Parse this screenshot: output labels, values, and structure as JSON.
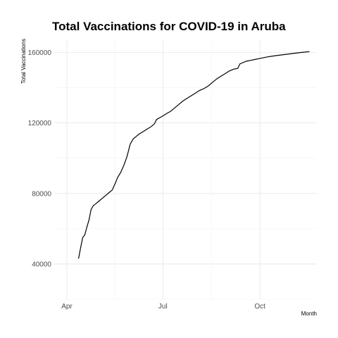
{
  "chart_data": {
    "type": "line",
    "title": "Total Vaccinations for COVID-19 in Aruba",
    "xlabel": "Month",
    "ylabel": "Total Vaccinations",
    "x_ticks": [
      {
        "label": "Apr",
        "day": 0
      },
      {
        "label": "Jul",
        "day": 91
      },
      {
        "label": "Oct",
        "day": 183
      }
    ],
    "x_minor_days": [
      45.5,
      137
    ],
    "xlim_days": [
      -12,
      237
    ],
    "ylim": [
      20000,
      167000
    ],
    "y_ticks": [
      40000,
      80000,
      120000,
      160000
    ],
    "y_tick_labels": [
      "40000",
      "80000",
      "120000",
      "160000"
    ],
    "series": [
      {
        "name": "Total Vaccinations",
        "segments": [
          {
            "x": [
              11,
              13,
              15,
              17,
              19,
              21,
              23,
              25,
              27
            ],
            "y": [
              43000,
              49000,
              55000,
              56500,
              61000,
              65000,
              71000,
              73000,
              74000
            ]
          },
          {
            "x": [
              27,
              30,
              33,
              36
            ],
            "y": [
              74000,
              75500,
              77000,
              78500
            ]
          },
          {
            "x": [
              36,
              40,
              43,
              46,
              48
            ],
            "y": [
              78500,
              80500,
              82000,
              86000,
              89000
            ]
          },
          {
            "x": [
              48,
              51,
              54,
              57,
              60
            ],
            "y": [
              89000,
              92000,
              96000,
              101000,
              108000
            ]
          },
          {
            "x": [
              60,
              63,
              66,
              68,
              72
            ],
            "y": [
              108000,
              111000,
              112500,
              113500,
              115000
            ]
          },
          {
            "x": [
              72,
              76,
              80,
              83
            ],
            "y": [
              115000,
              116500,
              118000,
              119500
            ]
          },
          {
            "x": [
              83,
              85,
              88,
              91,
              95,
              98
            ],
            "y": [
              119500,
              122000,
              123000,
              124000,
              125500,
              126500
            ]
          },
          {
            "x": [
              98,
              102,
              106,
              110,
              114,
              118,
              122,
              126,
              130
            ],
            "y": [
              126500,
              128500,
              130500,
              132500,
              134000,
              135500,
              137000,
              138500,
              139500
            ]
          },
          {
            "x": [
              130,
              134,
              138,
              142,
              146,
              150,
              154,
              158,
              162
            ],
            "y": [
              139500,
              141000,
              143000,
              145000,
              146500,
              148000,
              149500,
              150500,
              151000
            ]
          },
          {
            "x": [
              162,
              164,
              166,
              170,
              174,
              178,
              182
            ],
            "y": [
              151000,
              153500,
              154000,
              155000,
              155500,
              156000,
              156500
            ]
          },
          {
            "x": [
              182,
              190,
              198,
              206,
              214,
              222,
              230
            ],
            "y": [
              156500,
              157500,
              158200,
              158800,
              159400,
              160000,
              160500
            ]
          }
        ]
      }
    ]
  }
}
